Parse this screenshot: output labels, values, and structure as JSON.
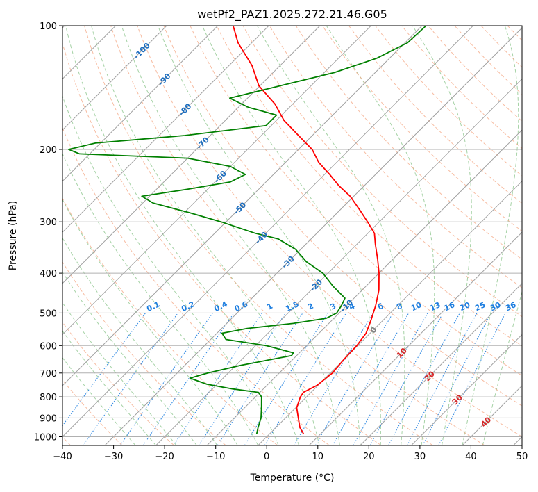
{
  "chart_data": {
    "type": "line",
    "subtype": "skew-t log-p",
    "title": "wetPf2_PAZ1.2025.272.21.46.G05",
    "xlabel": "Temperature (°C)",
    "ylabel": "Pressure (hPa)",
    "xlim": [
      -40,
      50
    ],
    "ylim": [
      1050,
      100
    ],
    "x_ticks": [
      -40,
      -30,
      -20,
      -10,
      0,
      10,
      20,
      30,
      40,
      50
    ],
    "x_tick_labels": [
      "−40",
      "−30",
      "−20",
      "−10",
      "0",
      "10",
      "20",
      "30",
      "40",
      "50"
    ],
    "y_ticks": [
      1000,
      900,
      800,
      700,
      600,
      500,
      400,
      300,
      200,
      100
    ],
    "y_tick_labels": [
      "1000",
      "900",
      "800",
      "700",
      "600",
      "500",
      "400",
      "300",
      "200",
      "100"
    ],
    "grid": true,
    "colors": {
      "temperature": "#ff0000",
      "dewpoint": "#008000",
      "isotherm": "#a0a0a0",
      "dry_adiabat": "#f4a582",
      "moist_adiabat": "#7fbf7f",
      "mixing_ratio": "#1f7fe0",
      "frame": "#000000"
    },
    "isotherm_labels": [
      {
        "value": "-100",
        "p": 115,
        "color": "#1f6fbf"
      },
      {
        "value": "-90",
        "p": 135,
        "color": "#1f6fbf"
      },
      {
        "value": "-80",
        "p": 160,
        "color": "#1f6fbf"
      },
      {
        "value": "-70",
        "p": 193,
        "color": "#1f6fbf"
      },
      {
        "value": "-60",
        "p": 233,
        "color": "#1f6fbf"
      },
      {
        "value": "-50",
        "p": 278,
        "color": "#1f6fbf"
      },
      {
        "value": "-40",
        "p": 328,
        "color": "#1f6fbf"
      },
      {
        "value": "-30",
        "p": 376,
        "color": "#1f6fbf"
      },
      {
        "value": "-20",
        "p": 428,
        "color": "#1f6fbf"
      },
      {
        "value": "-10",
        "p": 480,
        "color": "#1f6fbf"
      },
      {
        "value": "0",
        "p": 550,
        "color": "#808080"
      },
      {
        "value": "10",
        "p": 625,
        "color": "#d62728"
      },
      {
        "value": "20",
        "p": 712,
        "color": "#d62728"
      },
      {
        "value": "30",
        "p": 812,
        "color": "#d62728"
      },
      {
        "value": "40",
        "p": 920,
        "color": "#d62728"
      }
    ],
    "mixing_ratio_labels": [
      "0.1",
      "0.2",
      "0.4",
      "0.6",
      "1",
      "1.5",
      "2",
      "3",
      "4",
      "6",
      "8",
      "10",
      "13",
      "16",
      "20",
      "25",
      "30",
      "36"
    ],
    "mixing_ratio_label_x": [
      -22,
      -15.2,
      -8.8,
      -4.8,
      0.8,
      5.2,
      8.8,
      13.2,
      16.9,
      22.5,
      26.2,
      29.5,
      33.2,
      36,
      39,
      42,
      45,
      48
    ],
    "series": [
      {
        "name": "Temperature",
        "color": "#ff0000",
        "points": [
          [
            985,
            6.7
          ],
          [
            950,
            4.7
          ],
          [
            900,
            2.5
          ],
          [
            850,
            0.2
          ],
          [
            800,
            -1.2
          ],
          [
            780,
            -1.5
          ],
          [
            750,
            -0.2
          ],
          [
            700,
            0.4
          ],
          [
            650,
            0.0
          ],
          [
            600,
            -0.2
          ],
          [
            560,
            -0.8
          ],
          [
            520,
            -2.4
          ],
          [
            480,
            -4.3
          ],
          [
            440,
            -6.7
          ],
          [
            400,
            -10.0
          ],
          [
            370,
            -13.0
          ],
          [
            340,
            -16.4
          ],
          [
            320,
            -18.7
          ],
          [
            300,
            -22.3
          ],
          [
            280,
            -26.3
          ],
          [
            260,
            -30.7
          ],
          [
            245,
            -35.0
          ],
          [
            230,
            -39.0
          ],
          [
            215,
            -43.5
          ],
          [
            200,
            -47.3
          ],
          [
            185,
            -52.7
          ],
          [
            170,
            -58.5
          ],
          [
            155,
            -63.5
          ],
          [
            140,
            -70.2
          ],
          [
            125,
            -75.5
          ],
          [
            110,
            -82.7
          ],
          [
            100,
            -87.0
          ]
        ]
      },
      {
        "name": "Dewpoint",
        "color": "#008000",
        "points": [
          [
            985,
            -2.5
          ],
          [
            950,
            -3.5
          ],
          [
            900,
            -4.8
          ],
          [
            850,
            -6.7
          ],
          [
            800,
            -8.8
          ],
          [
            780,
            -10.3
          ],
          [
            765,
            -16.0
          ],
          [
            745,
            -22.0
          ],
          [
            720,
            -26.5
          ],
          [
            700,
            -24.0
          ],
          [
            670,
            -19.0
          ],
          [
            650,
            -14.5
          ],
          [
            635,
            -11.0
          ],
          [
            625,
            -11.2
          ],
          [
            600,
            -18.0
          ],
          [
            580,
            -27.0
          ],
          [
            560,
            -29.0
          ],
          [
            545,
            -25.0
          ],
          [
            530,
            -17.0
          ],
          [
            515,
            -11.5
          ],
          [
            500,
            -10.5
          ],
          [
            480,
            -11.0
          ],
          [
            460,
            -11.8
          ],
          [
            430,
            -16.5
          ],
          [
            400,
            -21.0
          ],
          [
            375,
            -26.5
          ],
          [
            350,
            -31.0
          ],
          [
            330,
            -36.5
          ],
          [
            320,
            -42.0
          ],
          [
            300,
            -51.0
          ],
          [
            285,
            -59.0
          ],
          [
            270,
            -68.0
          ],
          [
            260,
            -71.5
          ],
          [
            250,
            -64.0
          ],
          [
            240,
            -57.0
          ],
          [
            230,
            -55.5
          ],
          [
            220,
            -60.0
          ],
          [
            210,
            -70.0
          ],
          [
            205,
            -92.0
          ],
          [
            200,
            -95.0
          ],
          [
            193,
            -91.0
          ],
          [
            185,
            -75.0
          ],
          [
            175,
            -61.0
          ],
          [
            165,
            -61.0
          ],
          [
            158,
            -68.0
          ],
          [
            150,
            -73.5
          ],
          [
            140,
            -66.0
          ],
          [
            130,
            -58.0
          ],
          [
            120,
            -52.5
          ],
          [
            110,
            -49.5
          ],
          [
            100,
            -49.2
          ]
        ]
      }
    ]
  }
}
